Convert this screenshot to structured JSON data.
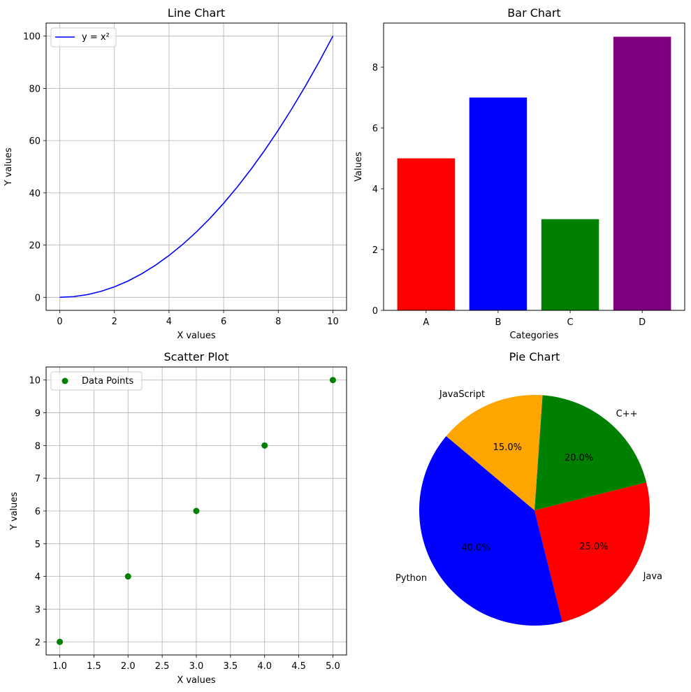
{
  "chart_data": [
    {
      "type": "line",
      "title": "Line Chart",
      "xlabel": "X values",
      "ylabel": "Y values",
      "xlim": [
        -0.5,
        10.5
      ],
      "ylim": [
        -5,
        105
      ],
      "xticks": [
        0,
        2,
        4,
        6,
        8,
        10
      ],
      "yticks": [
        0,
        20,
        40,
        60,
        80,
        100
      ],
      "grid": true,
      "legend_position": "upper-left",
      "series": [
        {
          "name": "y = x²",
          "color": "#0000ff",
          "function": "x^2",
          "x": [
            0,
            0.5,
            1,
            1.5,
            2,
            2.5,
            3,
            3.5,
            4,
            4.5,
            5,
            5.5,
            6,
            6.5,
            7,
            7.5,
            8,
            8.5,
            9,
            9.5,
            10
          ],
          "y": [
            0,
            0.25,
            1,
            2.25,
            4,
            6.25,
            9,
            12.25,
            16,
            20.25,
            25,
            30.25,
            36,
            42.25,
            49,
            56.25,
            64,
            72.25,
            81,
            90.25,
            100
          ]
        }
      ]
    },
    {
      "type": "bar",
      "title": "Bar Chart",
      "xlabel": "Categories",
      "ylabel": "Values",
      "ylim": [
        0,
        9.45
      ],
      "yticks": [
        0,
        2,
        4,
        6,
        8
      ],
      "grid": false,
      "categories": [
        "A",
        "B",
        "C",
        "D"
      ],
      "values": [
        5,
        7,
        3,
        9
      ],
      "colors": [
        "#ff0000",
        "#0000ff",
        "#008000",
        "#800080"
      ]
    },
    {
      "type": "scatter",
      "title": "Scatter Plot",
      "xlabel": "X values",
      "ylabel": "Y values",
      "xlim": [
        0.8,
        5.2
      ],
      "ylim": [
        1.6,
        10.4
      ],
      "xticks": [
        "1.0",
        "1.5",
        "2.0",
        "2.5",
        "3.0",
        "3.5",
        "4.0",
        "4.5",
        "5.0"
      ],
      "yticks": [
        "2",
        "3",
        "4",
        "5",
        "6",
        "7",
        "8",
        "9",
        "10"
      ],
      "grid": true,
      "legend_position": "upper-left",
      "series": [
        {
          "name": "Data Points",
          "color": "#008000",
          "x": [
            1,
            2,
            3,
            4,
            5
          ],
          "y": [
            2,
            4,
            6,
            8,
            10
          ]
        }
      ]
    },
    {
      "type": "pie",
      "title": "Pie Chart",
      "start_angle": 140,
      "slices": [
        {
          "label": "Python",
          "value": 40,
          "pct_label": "40.0%",
          "color": "#0000ff"
        },
        {
          "label": "Java",
          "value": 25,
          "pct_label": "25.0%",
          "color": "#ff0000"
        },
        {
          "label": "C++",
          "value": 20,
          "pct_label": "20.0%",
          "color": "#008000"
        },
        {
          "label": "JavaScript",
          "value": 15,
          "pct_label": "15.0%",
          "color": "#ffa500"
        }
      ]
    }
  ]
}
